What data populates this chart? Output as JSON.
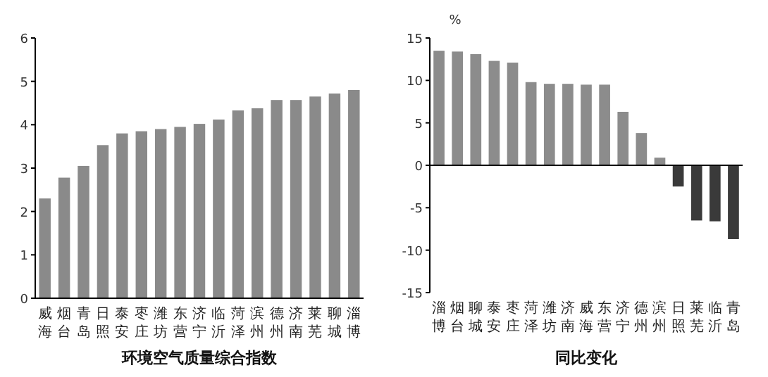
{
  "chart_data": [
    {
      "type": "bar",
      "xlabel": "环境空气质量综合指数",
      "categories": [
        "威海",
        "烟台",
        "青岛",
        "日照",
        "泰安",
        "枣庄",
        "潍坊",
        "东营",
        "济宁",
        "临沂",
        "菏泽",
        "滨州",
        "德州",
        "济南",
        "莱芜",
        "聊城",
        "淄博"
      ],
      "values": [
        2.3,
        2.78,
        3.05,
        3.53,
        3.8,
        3.85,
        3.9,
        3.95,
        4.02,
        4.12,
        4.33,
        4.38,
        4.57,
        4.57,
        4.65,
        4.72,
        4.8
      ],
      "color": "#8a8a8a",
      "ylim": [
        0,
        6
      ],
      "yticks": [
        0,
        1,
        2,
        3,
        4,
        5,
        6
      ]
    },
    {
      "type": "bar",
      "xlabel": "同比变化",
      "ylabel": "%",
      "categories": [
        "淄博",
        "烟台",
        "聊城",
        "泰安",
        "枣庄",
        "菏泽",
        "潍坊",
        "济南",
        "威海",
        "东营",
        "济宁",
        "德州",
        "滨州",
        "日照",
        "莱芜",
        "临沂",
        "青岛"
      ],
      "values": [
        13.5,
        13.4,
        13.1,
        12.3,
        12.1,
        9.8,
        9.6,
        9.6,
        9.5,
        9.5,
        6.3,
        3.8,
        0.9,
        -2.5,
        -6.5,
        -6.6,
        -8.7
      ],
      "colors": [
        "#8c8c8c",
        "#8c8c8c",
        "#8c8c8c",
        "#8c8c8c",
        "#8c8c8c",
        "#8c8c8c",
        "#8c8c8c",
        "#8c8c8c",
        "#8c8c8c",
        "#8c8c8c",
        "#8c8c8c",
        "#8c8c8c",
        "#8c8c8c",
        "#3a3a3a",
        "#3a3a3a",
        "#3a3a3a",
        "#3a3a3a"
      ],
      "ylim": [
        -15,
        15
      ],
      "yticks": [
        -15,
        -10,
        -5,
        0,
        5,
        10,
        15
      ]
    }
  ]
}
